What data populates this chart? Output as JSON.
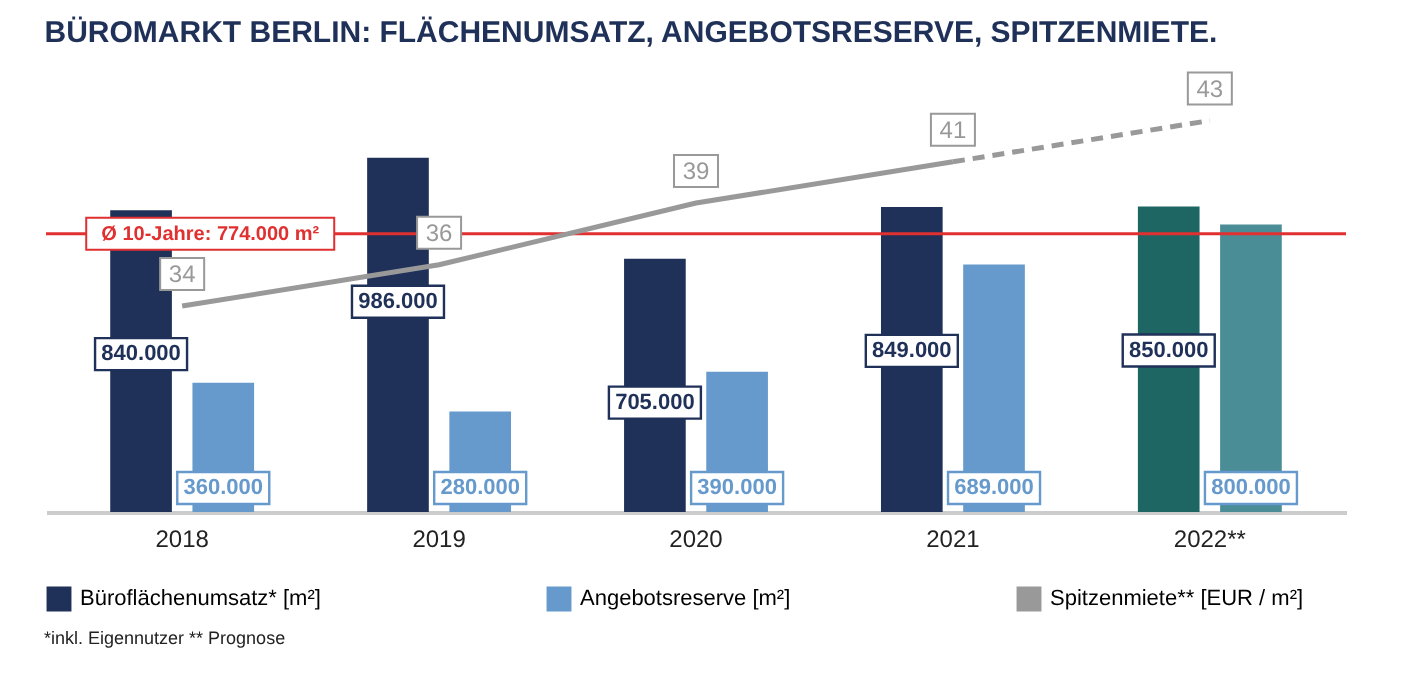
{
  "chart_data": {
    "type": "bar",
    "title": "BÜROMARKT BERLIN: FLÄCHENUMSATZ, ANGEBOTSRESERVE, SPITZENMIETE.",
    "categories": [
      "2018",
      "2019",
      "2020",
      "2021",
      "2022**"
    ],
    "series": [
      {
        "name": "Büroflächenumsatz* [m²]",
        "color": "#1f3158",
        "colors": [
          "#1f3158",
          "#1f3158",
          "#1f3158",
          "#1f3158",
          "#1e6664"
        ],
        "values": [
          840000,
          986000,
          705000,
          849000,
          850000
        ],
        "value_labels": [
          "840.000",
          "986.000",
          "705.000",
          "849.000",
          "850.000"
        ]
      },
      {
        "name": "Angebotsreserve [m²]",
        "color": "#6699cc",
        "colors": [
          "#6699cc",
          "#6699cc",
          "#6699cc",
          "#6699cc",
          "#4a8d96"
        ],
        "values": [
          360000,
          280000,
          390000,
          689000,
          800000
        ],
        "value_labels": [
          "360.000",
          "280.000",
          "390.000",
          "689.000",
          "800.000"
        ]
      },
      {
        "name": "Spitzenmiete** [EUR / m²]",
        "type": "line",
        "axis": "y2",
        "color": "#999999",
        "line_style": "solid",
        "values": [
          34,
          36,
          39,
          41,
          null
        ],
        "value_labels": [
          "34",
          "36",
          "39",
          "41",
          null
        ]
      },
      {
        "type": "line",
        "axis": "y2",
        "color": "#999999",
        "line_style": "dashed",
        "values": [
          null,
          null,
          null,
          41,
          43
        ],
        "value_labels": [
          null,
          null,
          null,
          null,
          "43"
        ]
      }
    ],
    "ref_lines": [
      {
        "axis": "y",
        "value": 774000,
        "label": "Ø 10-Jahre: 774.000 m²",
        "color": "#e03030"
      }
    ],
    "legend": "bottom",
    "annotations": [
      "*inkl. Eigennutzer ** Prognose"
    ]
  }
}
